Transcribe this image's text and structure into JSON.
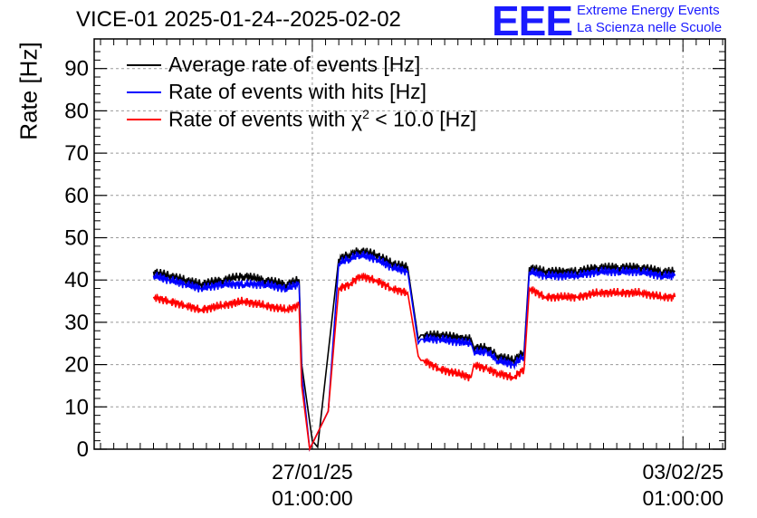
{
  "chart_data": {
    "type": "line",
    "title": "VICE-01 2025-01-24--2025-02-02",
    "ylabel": "Rate [Hz]",
    "xlabel": "",
    "ylim": [
      0,
      97
    ],
    "yticks": [
      0,
      10,
      20,
      30,
      40,
      50,
      60,
      70,
      80,
      90
    ],
    "xticks": [
      {
        "label_date": "27/01/25",
        "label_time": "01:00:00",
        "x": 3.0
      },
      {
        "label_date": "03/02/25",
        "label_time": "01:00:00",
        "x": 10.0
      }
    ],
    "xlim": [
      -1.12,
      10.8
    ],
    "grid": true,
    "legend_position": "top-left",
    "series": [
      {
        "name": "Average rate of events [Hz]",
        "color": "#000000",
        "x": [
          0.0,
          0.3,
          0.6,
          0.9,
          1.3,
          1.7,
          2.1,
          2.5,
          2.75,
          2.8,
          3.0,
          3.1,
          3.5,
          3.7,
          3.9,
          4.2,
          4.5,
          4.8,
          5.0,
          5.05,
          5.1,
          5.4,
          6.0,
          6.05,
          6.3,
          6.5,
          6.8,
          7.0,
          7.1,
          7.4,
          8.0,
          8.4,
          8.8,
          9.2,
          9.6,
          9.85
        ],
        "values": [
          42,
          41,
          40,
          39,
          40,
          41,
          40,
          39,
          40,
          20,
          2,
          0.5,
          45,
          46,
          47,
          46,
          44,
          43,
          26,
          27,
          27,
          27,
          26,
          24,
          24,
          22,
          21,
          23,
          43,
          42,
          42,
          43,
          43,
          43,
          42,
          42
        ]
      },
      {
        "name": "Rate of events with hits [Hz]",
        "color": "#0000ff",
        "x": [
          0.0,
          0.3,
          0.6,
          0.9,
          1.3,
          1.7,
          2.1,
          2.5,
          2.75,
          2.8,
          2.95,
          3.3,
          3.5,
          3.7,
          3.9,
          4.2,
          4.5,
          4.8,
          5.0,
          5.05,
          5.1,
          5.4,
          6.0,
          6.05,
          6.3,
          6.5,
          6.8,
          7.0,
          7.1,
          7.4,
          8.0,
          8.4,
          8.8,
          9.2,
          9.6,
          9.85
        ],
        "values": [
          41,
          40,
          39,
          38,
          39,
          39,
          39,
          38,
          39,
          18,
          0,
          9,
          44,
          45,
          46,
          45,
          43,
          42,
          25,
          26,
          26,
          26,
          25,
          23,
          23,
          21,
          20,
          22,
          42,
          41,
          41,
          42,
          42,
          42,
          41,
          41
        ]
      },
      {
        "name": "Rate of events with χ² < 10.0 [Hz]",
        "color": "#ff0000",
        "x": [
          0.0,
          0.3,
          0.6,
          0.9,
          1.3,
          1.7,
          2.1,
          2.5,
          2.75,
          2.8,
          2.95,
          3.3,
          3.5,
          3.7,
          3.9,
          4.2,
          4.5,
          4.8,
          5.0,
          5.05,
          5.1,
          5.4,
          6.0,
          6.05,
          6.3,
          6.5,
          6.8,
          7.0,
          7.1,
          7.4,
          8.0,
          8.4,
          8.8,
          9.2,
          9.6,
          9.85
        ],
        "values": [
          36,
          35,
          34,
          33,
          34,
          35,
          34,
          33,
          34,
          15,
          0,
          9,
          38,
          39,
          41,
          40,
          38,
          37,
          22,
          21,
          21,
          19,
          17,
          20,
          19,
          18,
          17,
          19,
          38,
          36,
          36,
          37,
          37,
          37,
          36,
          36
        ]
      }
    ]
  },
  "header": {
    "title": "VICE-01 2025-01-24--2025-02-02",
    "logo_text": "EEE",
    "logo_line1": "Extreme Energy Events",
    "logo_line2": "La Scienza nelle Scuole"
  },
  "legend": {
    "item1": "Average rate of events [Hz]",
    "item2": "Rate of events with hits [Hz]",
    "item3_prefix": "Rate of events with χ",
    "item3_sup": "2",
    "item3_suffix": " < 10.0 [Hz]"
  },
  "colors": {
    "black": "#000000",
    "blue": "#0000ff",
    "red": "#ff0000",
    "logo": "#1a1aff",
    "grid": "#999999"
  }
}
